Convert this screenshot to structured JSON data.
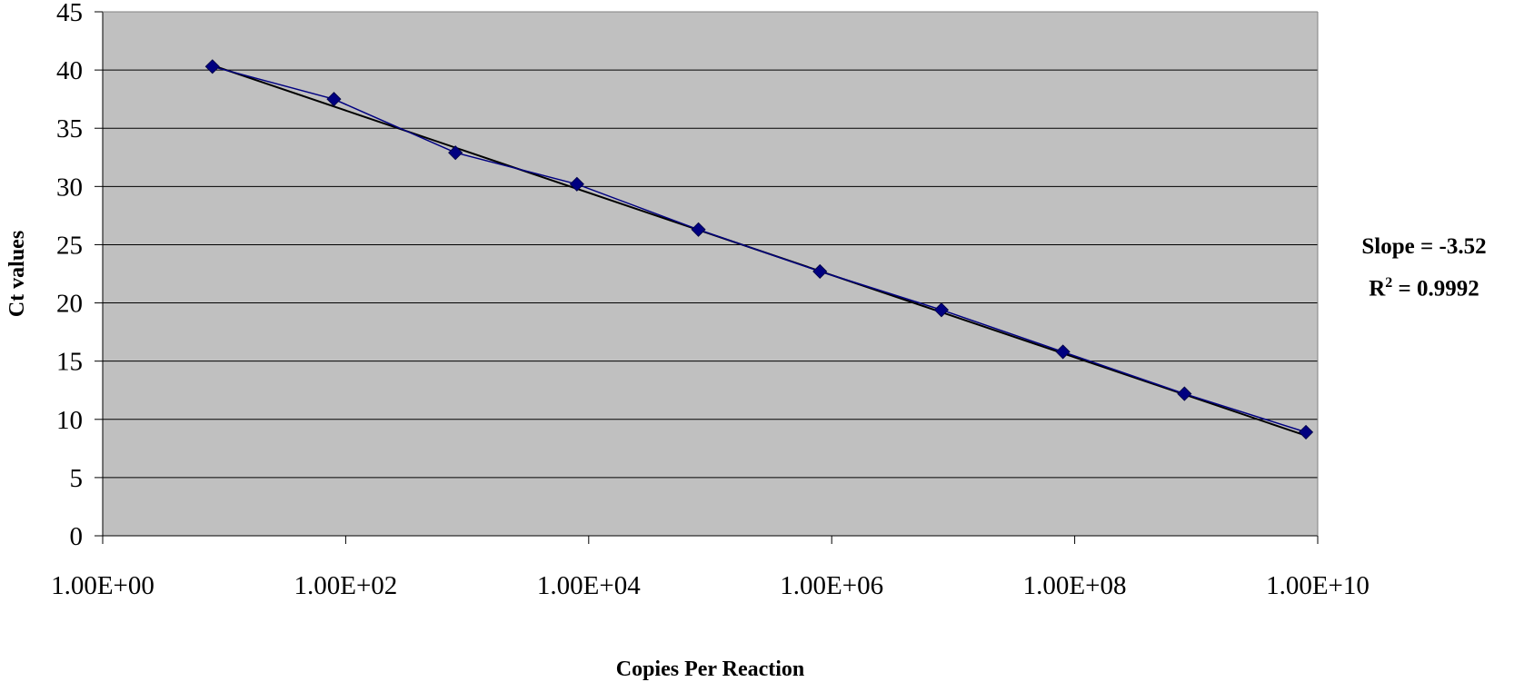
{
  "chart_data": {
    "type": "scatter",
    "title": "",
    "xlabel": "Copies Per Reaction",
    "ylabel": "Ct values",
    "x_scale": "log",
    "x_range": [
      1,
      10000000000
    ],
    "x_ticks": [
      1,
      100,
      10000,
      1000000,
      100000000,
      10000000000
    ],
    "x_tick_labels": [
      "1.00E+00",
      "1.00E+02",
      "1.00E+04",
      "1.00E+06",
      "1.00E+08",
      "1.00E+10"
    ],
    "ylim": [
      0,
      45
    ],
    "y_ticks": [
      0,
      5,
      10,
      15,
      20,
      25,
      30,
      35,
      40,
      45
    ],
    "grid": "horizontal",
    "plot_background": "#c0c0c0",
    "series": [
      {
        "x": [
          8,
          80,
          800,
          8000,
          80000,
          800000,
          8000000,
          80000000,
          800000000,
          8000000000
        ],
        "y": [
          40.3,
          37.5,
          32.9,
          30.2,
          26.3,
          22.7,
          19.4,
          15.8,
          12.2,
          8.9
        ],
        "color": "#000080",
        "marker": "diamond",
        "line": true
      }
    ],
    "trendline": {
      "type": "linear-log",
      "x": [
        8,
        8000000000
      ],
      "y": [
        40.4,
        8.6
      ],
      "color": "#000000"
    },
    "annotations": {
      "slope_text": "Slope = -3.52",
      "r2_label": "R",
      "r2_exp": "2",
      "r2_value": " = 0.9992"
    }
  }
}
